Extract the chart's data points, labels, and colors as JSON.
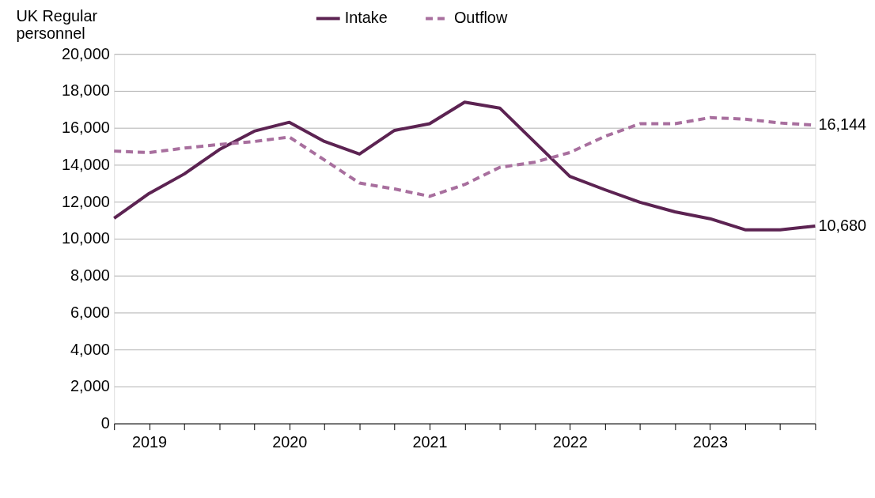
{
  "chart_data": {
    "type": "line",
    "ylabel": "UK Regular personnel",
    "categories": [
      null,
      "2019",
      null,
      null,
      null,
      "2020",
      null,
      null,
      null,
      "2021",
      null,
      null,
      null,
      "2022",
      null,
      null,
      null,
      "2023",
      null,
      null,
      null
    ],
    "series": [
      {
        "name": "Intake",
        "color": "#5c2352",
        "line_style": "solid",
        "values": [
          11100,
          12450,
          13500,
          14820,
          15820,
          16300,
          15260,
          14580,
          15860,
          16220,
          17390,
          17070,
          15220,
          13370,
          12650,
          11970,
          11450,
          11080,
          10480,
          10480,
          10680
        ],
        "value_labels": [
          null,
          null,
          null,
          null,
          null,
          null,
          null,
          null,
          null,
          null,
          null,
          null,
          null,
          null,
          null,
          null,
          null,
          null,
          null,
          null,
          "10,680"
        ]
      },
      {
        "name": "Outflow",
        "color": "#a86f9e",
        "line_style": "dashed",
        "values": [
          14740,
          14660,
          14900,
          15100,
          15260,
          15500,
          14260,
          13010,
          12690,
          12290,
          12930,
          13860,
          14140,
          14660,
          15540,
          16220,
          16220,
          16550,
          16470,
          16260,
          16144
        ],
        "value_labels": [
          null,
          null,
          null,
          null,
          null,
          null,
          null,
          null,
          null,
          null,
          null,
          null,
          null,
          null,
          null,
          null,
          null,
          null,
          null,
          null,
          "16,144"
        ]
      }
    ],
    "ylim": [
      0,
      20000
    ],
    "yticks": [
      0,
      {
        "value": 2000,
        "label": "2,000"
      },
      {
        "value": 4000,
        "label": "4,000"
      },
      {
        "value": 6000,
        "label": "6,000"
      },
      {
        "value": 8000,
        "label": "8,000"
      },
      {
        "value": 10000,
        "label": "10,000"
      },
      {
        "value": 12000,
        "label": "12,000"
      },
      {
        "value": 14000,
        "label": "14,000"
      },
      {
        "value": 16000,
        "label": "16,000"
      },
      {
        "value": 18000,
        "label": "18,000"
      },
      {
        "value": 20000,
        "label": "20,000"
      }
    ],
    "grid": "y",
    "legend": "top",
    "marker": "none"
  }
}
